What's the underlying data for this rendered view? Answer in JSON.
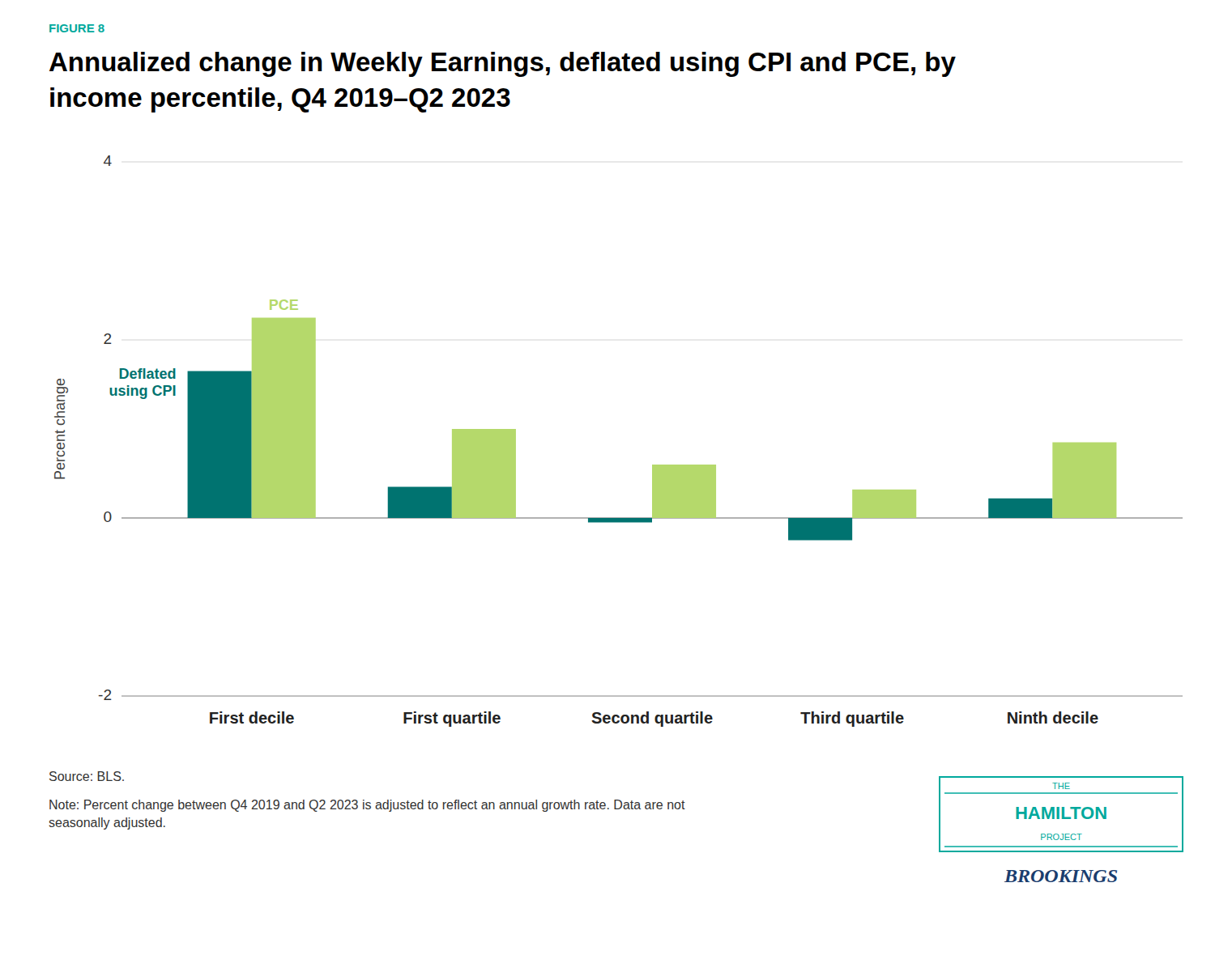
{
  "chart_data": {
    "type": "bar",
    "figure_label": "FIGURE 8",
    "title": "Annualized change in Weekly Earnings, deflated using CPI and PCE, by\nincome percentile, Q4 2019–Q2 2023",
    "y_label": "Percent change",
    "categories": [
      "First decile",
      "First quartile",
      "Second quartile",
      "Third quartile",
      "Ninth decile"
    ],
    "series": [
      {
        "name": "Deflated\nusing CPI",
        "color": "#007370",
        "values": [
          1.65,
          0.35,
          -0.05,
          -0.25,
          0.22
        ]
      },
      {
        "name": "PCE",
        "color": "#b5d96b",
        "values": [
          2.25,
          1.0,
          0.6,
          0.32,
          0.85
        ]
      }
    ],
    "ylim": [
      -2,
      4
    ],
    "yticks": [
      -2,
      0,
      2,
      4
    ],
    "grid": true,
    "source": "Source: BLS.",
    "note": "Note: Percent change between Q4 2019 and Q2 2023 is adjusted to reflect an annual growth rate. Data are not\nseasonally adjusted.",
    "logo": [
      "THE",
      "HAMILTON",
      "PROJECT",
      "BROOKINGS"
    ]
  }
}
